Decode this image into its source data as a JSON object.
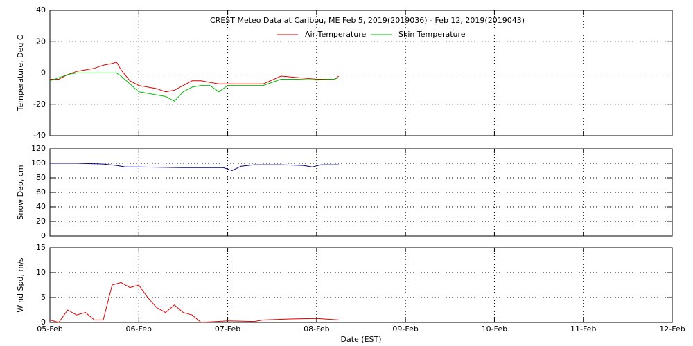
{
  "chart_data": [
    {
      "type": "line",
      "title": "CREST Meteo Data at Caribou, ME   Feb  5, 2019(2019036) - Feb 12, 2019(2019043)",
      "y_label": "Temperature, Deg C",
      "x": [
        0,
        0.1,
        0.2,
        0.3,
        0.4,
        0.5,
        0.6,
        0.7,
        0.75,
        0.8,
        0.9,
        1.0,
        1.1,
        1.2,
        1.3,
        1.4,
        1.5,
        1.6,
        1.7,
        1.8,
        1.9,
        2.0,
        2.2,
        2.4,
        2.6,
        2.8,
        3.0,
        3.2,
        3.25
      ],
      "series": [
        {
          "name": "Air Temperature",
          "color": "#e00000",
          "values": [
            -4,
            -4,
            -1,
            1,
            2,
            3,
            5,
            6,
            7,
            2,
            -5,
            -8,
            -9,
            -10,
            -12,
            -11,
            -8,
            -5,
            -5,
            -6,
            -7,
            -7,
            -7,
            -7,
            -2,
            -3,
            -4,
            -4,
            -2
          ]
        },
        {
          "name": "Skin Temperature",
          "color": "#00c000",
          "values": [
            -5,
            -3,
            -1,
            0,
            0,
            0,
            0,
            0,
            0,
            -2,
            -7,
            -12,
            -13,
            -14,
            -15,
            -18,
            -12,
            -9,
            -8,
            -8,
            -12,
            -8,
            -8,
            -8,
            -4,
            -4,
            -4.5,
            -4,
            -3
          ]
        }
      ],
      "xlim": [
        0,
        7
      ],
      "ylim": [
        -40,
        40
      ],
      "yticks": [
        -40,
        -20,
        0,
        20,
        40
      ],
      "grid": true
    },
    {
      "type": "line",
      "y_label": "Snow Dep, cm",
      "x": [
        0,
        0.3,
        0.6,
        0.75,
        0.85,
        1.0,
        1.5,
        1.95,
        2.05,
        2.15,
        2.3,
        2.6,
        2.85,
        2.95,
        3.05,
        3.25
      ],
      "series": [
        {
          "color": "#000080",
          "values": [
            100,
            100,
            99,
            97,
            95,
            95,
            94,
            94,
            90,
            96,
            98,
            98,
            97,
            95,
            98,
            98
          ]
        }
      ],
      "xlim": [
        0,
        7
      ],
      "ylim": [
        0,
        120
      ],
      "yticks": [
        0,
        20,
        40,
        60,
        80,
        100,
        120
      ],
      "grid": true
    },
    {
      "type": "line",
      "y_label": "Wind Spd, m/s",
      "x_label": "Date (EST)",
      "x": [
        0,
        0.1,
        0.2,
        0.3,
        0.4,
        0.5,
        0.6,
        0.65,
        0.7,
        0.8,
        0.9,
        1.0,
        1.1,
        1.2,
        1.3,
        1.4,
        1.5,
        1.6,
        1.7,
        2.0,
        2.3,
        2.4,
        2.7,
        3.0,
        3.25
      ],
      "series": [
        {
          "color": "#e00000",
          "values": [
            0.5,
            0,
            2.5,
            1.5,
            2,
            0.5,
            0.5,
            4,
            7.5,
            8,
            7,
            7.5,
            5,
            3,
            2,
            3.5,
            2,
            1.5,
            0,
            0.3,
            0.2,
            0.5,
            0.7,
            0.8,
            0.5
          ]
        }
      ],
      "xlim": [
        0,
        7
      ],
      "xticks": [
        {
          "value": 0,
          "label": "05-Feb"
        },
        {
          "value": 1,
          "label": "06-Feb"
        },
        {
          "value": 2,
          "label": "07-Feb"
        },
        {
          "value": 3,
          "label": "08-Feb"
        },
        {
          "value": 4,
          "label": "09-Feb"
        },
        {
          "value": 5,
          "label": "10-Feb"
        },
        {
          "value": 6,
          "label": "11-Feb"
        },
        {
          "value": 7,
          "label": "12-Feb"
        }
      ],
      "ylim": [
        0,
        15
      ],
      "yticks": [
        0,
        5,
        10,
        15
      ],
      "grid": true
    }
  ]
}
